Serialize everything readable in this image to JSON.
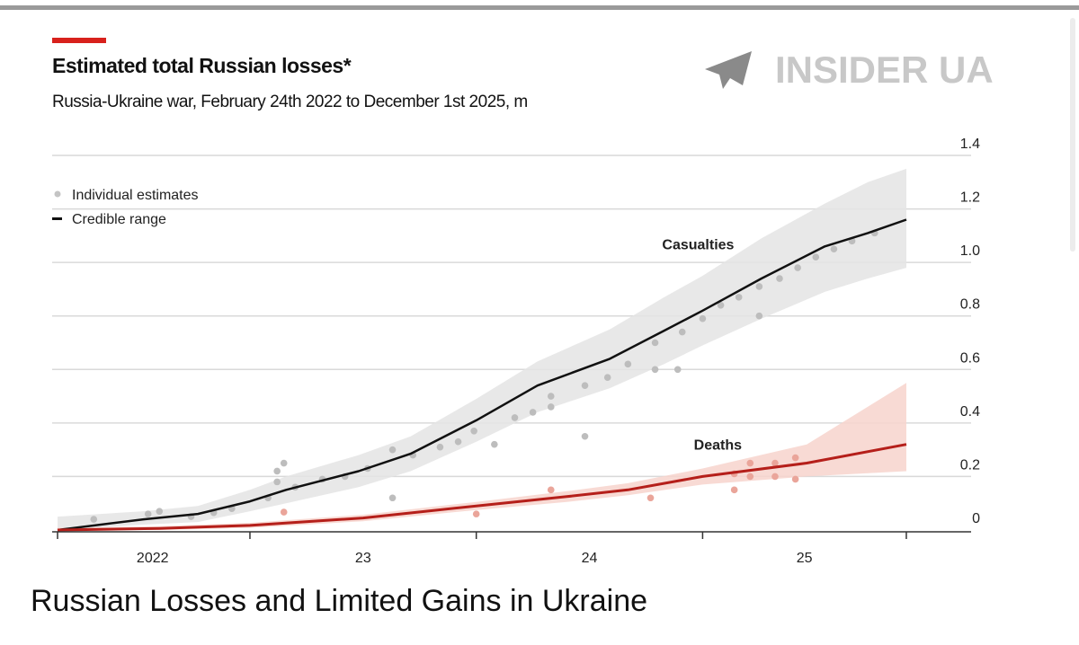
{
  "header": {
    "title": "Estimated total Russian losses*",
    "subtitle": "Russia-Ukraine war, February 24th 2022 to December 1st 2025, m",
    "watermark": "INSIDER UA"
  },
  "caption": "Russian Losses and Limited Gains in Ukraine",
  "colors": {
    "accent": "#d8211c",
    "casualties": "#111111",
    "deaths": "#b51f1a",
    "casualty_band": "#e4e4e4",
    "death_band": "#f7d3cc"
  },
  "chart_data": {
    "type": "line",
    "title": "Estimated total Russian losses*",
    "subtitle": "Russia-Ukraine war, February 24th 2022 to December 1st 2025, m",
    "xlabel": "",
    "ylabel": "m",
    "xlim": [
      2022.15,
      2025.92
    ],
    "ylim": [
      0,
      1.4
    ],
    "yticks": [
      0,
      0.2,
      0.4,
      0.6,
      0.8,
      1.0,
      1.2,
      1.4
    ],
    "ytick_labels": [
      "0",
      "0.2",
      "0.4",
      "0.6",
      "0.8",
      "1.0",
      "1.2",
      "1.4"
    ],
    "xtick_positions": [
      2022.15,
      2023.0,
      2024.0,
      2025.0,
      2025.9
    ],
    "xlabels": [
      {
        "label": "2022",
        "x": 2022.57
      },
      {
        "label": "23",
        "x": 2023.5
      },
      {
        "label": "24",
        "x": 2024.5
      },
      {
        "label": "25",
        "x": 2025.45
      }
    ],
    "grid": true,
    "legend": {
      "placement": "top-left",
      "entries": [
        "Individual estimates",
        "Credible range"
      ]
    },
    "series": [
      {
        "name": "Casualties",
        "label_at": [
          2025.0,
          1.05
        ],
        "x": [
          2022.15,
          2022.53,
          2022.77,
          2023.0,
          2023.16,
          2023.48,
          2023.71,
          2024.0,
          2024.27,
          2024.59,
          2024.83,
          2025.0,
          2025.26,
          2025.54,
          2025.73,
          2025.9
        ],
        "y": [
          0,
          0.04,
          0.06,
          0.107,
          0.15,
          0.22,
          0.285,
          0.41,
          0.54,
          0.64,
          0.745,
          0.82,
          0.94,
          1.06,
          1.11,
          1.16
        ],
        "lower": [
          0,
          0.02,
          0.03,
          0.07,
          0.1,
          0.16,
          0.22,
          0.33,
          0.44,
          0.53,
          0.62,
          0.69,
          0.79,
          0.89,
          0.94,
          0.98
        ],
        "upper": [
          0.05,
          0.07,
          0.09,
          0.15,
          0.2,
          0.28,
          0.35,
          0.49,
          0.63,
          0.75,
          0.87,
          0.95,
          1.09,
          1.22,
          1.3,
          1.35
        ],
        "estimates": [
          [
            2022.31,
            0.04
          ],
          [
            2022.55,
            0.06
          ],
          [
            2022.6,
            0.07
          ],
          [
            2022.74,
            0.05
          ],
          [
            2022.84,
            0.065
          ],
          [
            2022.92,
            0.08
          ],
          [
            2023.08,
            0.12
          ],
          [
            2023.12,
            0.22
          ],
          [
            2023.15,
            0.25
          ],
          [
            2023.12,
            0.18
          ],
          [
            2023.2,
            0.16
          ],
          [
            2023.32,
            0.19
          ],
          [
            2023.42,
            0.2
          ],
          [
            2023.52,
            0.23
          ],
          [
            2023.63,
            0.3
          ],
          [
            2023.63,
            0.12
          ],
          [
            2023.72,
            0.28
          ],
          [
            2023.84,
            0.31
          ],
          [
            2023.92,
            0.33
          ],
          [
            2023.99,
            0.37
          ],
          [
            2024.08,
            0.32
          ],
          [
            2024.17,
            0.42
          ],
          [
            2024.25,
            0.44
          ],
          [
            2024.33,
            0.5
          ],
          [
            2024.33,
            0.46
          ],
          [
            2024.48,
            0.35
          ],
          [
            2024.48,
            0.54
          ],
          [
            2024.58,
            0.57
          ],
          [
            2024.67,
            0.62
          ],
          [
            2024.79,
            0.7
          ],
          [
            2024.79,
            0.6
          ],
          [
            2024.89,
            0.6
          ],
          [
            2024.91,
            0.74
          ],
          [
            2025.0,
            0.79
          ],
          [
            2025.08,
            0.84
          ],
          [
            2025.16,
            0.87
          ],
          [
            2025.25,
            0.8
          ],
          [
            2025.25,
            0.91
          ],
          [
            2025.34,
            0.94
          ],
          [
            2025.42,
            0.98
          ],
          [
            2025.5,
            1.02
          ],
          [
            2025.58,
            1.05
          ],
          [
            2025.66,
            1.08
          ],
          [
            2025.76,
            1.11
          ]
        ]
      },
      {
        "name": "Deaths",
        "label_at": [
          2025.14,
          0.3
        ],
        "x": [
          2022.15,
          2022.6,
          2023.0,
          2023.5,
          2024.0,
          2024.4,
          2024.67,
          2025.0,
          2025.46,
          2025.9
        ],
        "y": [
          0,
          0.006,
          0.017,
          0.045,
          0.09,
          0.125,
          0.15,
          0.2,
          0.25,
          0.32
        ],
        "lower": [
          0,
          0.0,
          0.008,
          0.033,
          0.075,
          0.105,
          0.13,
          0.17,
          0.2,
          0.22
        ],
        "upper": [
          0.008,
          0.014,
          0.027,
          0.057,
          0.105,
          0.145,
          0.175,
          0.23,
          0.32,
          0.55
        ],
        "estimates": [
          [
            2023.15,
            0.067
          ],
          [
            2024.0,
            0.06
          ],
          [
            2024.33,
            0.15
          ],
          [
            2024.77,
            0.12
          ],
          [
            2025.14,
            0.15
          ],
          [
            2025.14,
            0.21
          ],
          [
            2025.21,
            0.25
          ],
          [
            2025.21,
            0.2
          ],
          [
            2025.32,
            0.2
          ],
          [
            2025.32,
            0.25
          ],
          [
            2025.41,
            0.19
          ],
          [
            2025.41,
            0.27
          ]
        ]
      }
    ]
  }
}
